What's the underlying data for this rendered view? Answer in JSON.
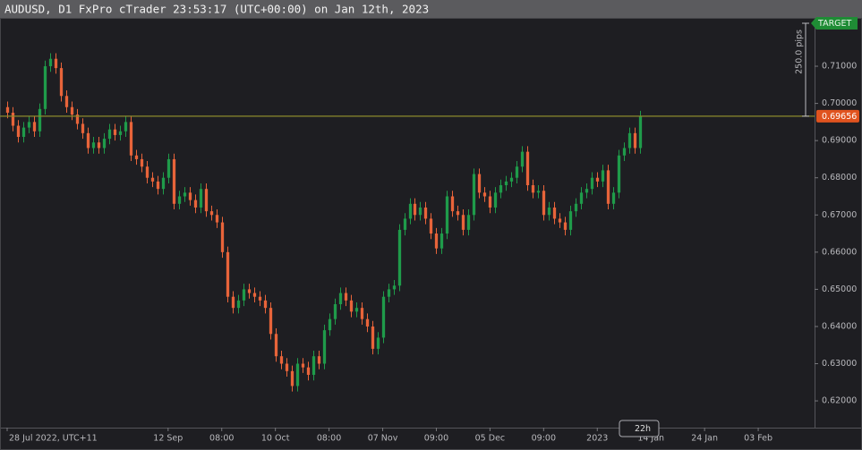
{
  "chart_data": {
    "type": "candlestick",
    "title": "AUDUSD, D1 FxPro cTrader 23:53:17 (UTC+00:00) on Jan 12th, 2023",
    "up_color": "#1f9b4a",
    "down_color": "#e8643a",
    "xlim": [
      -0.5,
      150.5
    ],
    "ylim": [
      0.6128,
      0.723
    ],
    "yticks": [
      {
        "value": 0.62,
        "label": "0.62000"
      },
      {
        "value": 0.63,
        "label": "0.63000"
      },
      {
        "value": 0.64,
        "label": "0.64000"
      },
      {
        "value": 0.65,
        "label": "0.65000"
      },
      {
        "value": 0.66,
        "label": "0.66000"
      },
      {
        "value": 0.67,
        "label": "0.67000"
      },
      {
        "value": 0.68,
        "label": "0.68000"
      },
      {
        "value": 0.69,
        "label": "0.69000"
      },
      {
        "value": 0.7,
        "label": "0.70000"
      },
      {
        "value": 0.71,
        "label": "0.71000"
      }
    ],
    "xticks": [
      {
        "value": 0,
        "label": "28 Jul 2022, UTC+11"
      },
      {
        "value": 30,
        "label": "12 Sep"
      },
      {
        "value": 40,
        "label": "08:00"
      },
      {
        "value": 50,
        "label": "10 Oct"
      },
      {
        "value": 60,
        "label": "08:00"
      },
      {
        "value": 70,
        "label": "07 Nov"
      },
      {
        "value": 80,
        "label": "09:00"
      },
      {
        "value": 90,
        "label": "05 Dec"
      },
      {
        "value": 100,
        "label": "09:00"
      },
      {
        "value": 110,
        "label": "2023"
      },
      {
        "value": 120,
        "label": "14 Jan"
      },
      {
        "value": 130,
        "label": "24 Jan"
      },
      {
        "value": 140,
        "label": "03 Feb"
      }
    ],
    "current_price": {
      "value": 0.69656,
      "label": "0.69656"
    },
    "target": {
      "value": 0.72156,
      "label": "TARGET"
    },
    "distance_label": "250.0 pips",
    "countdown": "22h",
    "ohlc": [
      [
        0.699,
        0.7005,
        0.696,
        0.6975
      ],
      [
        0.6975,
        0.699,
        0.6925,
        0.694
      ],
      [
        0.694,
        0.6955,
        0.6895,
        0.691
      ],
      [
        0.691,
        0.695,
        0.6895,
        0.6935
      ],
      [
        0.6935,
        0.6965,
        0.692,
        0.695
      ],
      [
        0.695,
        0.6965,
        0.691,
        0.6925
      ],
      [
        0.6925,
        0.7,
        0.691,
        0.6985
      ],
      [
        0.6985,
        0.7115,
        0.697,
        0.71
      ],
      [
        0.71,
        0.7135,
        0.7085,
        0.712
      ],
      [
        0.712,
        0.7135,
        0.708,
        0.7095
      ],
      [
        0.7095,
        0.711,
        0.7005,
        0.702
      ],
      [
        0.702,
        0.7035,
        0.6975,
        0.699
      ],
      [
        0.699,
        0.7005,
        0.6955,
        0.697
      ],
      [
        0.697,
        0.6985,
        0.693,
        0.6945
      ],
      [
        0.6945,
        0.696,
        0.6905,
        0.692
      ],
      [
        0.692,
        0.6935,
        0.6865,
        0.688
      ],
      [
        0.688,
        0.691,
        0.6865,
        0.6895
      ],
      [
        0.6895,
        0.691,
        0.6865,
        0.688
      ],
      [
        0.688,
        0.692,
        0.6865,
        0.6905
      ],
      [
        0.6905,
        0.6945,
        0.689,
        0.693
      ],
      [
        0.693,
        0.6945,
        0.69,
        0.6915
      ],
      [
        0.6915,
        0.694,
        0.69,
        0.6925
      ],
      [
        0.6925,
        0.6965,
        0.691,
        0.695
      ],
      [
        0.695,
        0.6965,
        0.6845,
        0.686
      ],
      [
        0.686,
        0.6875,
        0.6835,
        0.685
      ],
      [
        0.685,
        0.6865,
        0.6815,
        0.683
      ],
      [
        0.683,
        0.6845,
        0.6785,
        0.68
      ],
      [
        0.68,
        0.6815,
        0.6775,
        0.679
      ],
      [
        0.679,
        0.6805,
        0.6755,
        0.677
      ],
      [
        0.677,
        0.6815,
        0.6755,
        0.68
      ],
      [
        0.68,
        0.6865,
        0.6785,
        0.685
      ],
      [
        0.685,
        0.6865,
        0.6715,
        0.673
      ],
      [
        0.673,
        0.6765,
        0.6715,
        0.675
      ],
      [
        0.675,
        0.6775,
        0.6735,
        0.676
      ],
      [
        0.676,
        0.6775,
        0.6725,
        0.674
      ],
      [
        0.674,
        0.6755,
        0.6705,
        0.672
      ],
      [
        0.672,
        0.6785,
        0.6705,
        0.677
      ],
      [
        0.677,
        0.6785,
        0.6695,
        0.671
      ],
      [
        0.671,
        0.6725,
        0.6685,
        0.67
      ],
      [
        0.67,
        0.6715,
        0.6665,
        0.668
      ],
      [
        0.668,
        0.6695,
        0.6585,
        0.66
      ],
      [
        0.66,
        0.6615,
        0.6465,
        0.648
      ],
      [
        0.648,
        0.6495,
        0.6435,
        0.645
      ],
      [
        0.645,
        0.6485,
        0.6435,
        0.647
      ],
      [
        0.647,
        0.6515,
        0.6455,
        0.65
      ],
      [
        0.65,
        0.6515,
        0.6475,
        0.649
      ],
      [
        0.649,
        0.6505,
        0.6465,
        0.648
      ],
      [
        0.648,
        0.6495,
        0.6455,
        0.647
      ],
      [
        0.647,
        0.6485,
        0.6435,
        0.645
      ],
      [
        0.645,
        0.6465,
        0.6365,
        0.638
      ],
      [
        0.638,
        0.6395,
        0.6305,
        0.632
      ],
      [
        0.632,
        0.6335,
        0.6285,
        0.63
      ],
      [
        0.63,
        0.6315,
        0.6265,
        0.628
      ],
      [
        0.628,
        0.6295,
        0.6225,
        0.624
      ],
      [
        0.624,
        0.6315,
        0.6225,
        0.63
      ],
      [
        0.63,
        0.6315,
        0.6275,
        0.629
      ],
      [
        0.629,
        0.6305,
        0.6255,
        0.627
      ],
      [
        0.627,
        0.6335,
        0.6255,
        0.632
      ],
      [
        0.632,
        0.6335,
        0.6285,
        0.63
      ],
      [
        0.63,
        0.6405,
        0.6285,
        0.639
      ],
      [
        0.639,
        0.6435,
        0.6375,
        0.642
      ],
      [
        0.642,
        0.6475,
        0.6405,
        0.646
      ],
      [
        0.646,
        0.6505,
        0.6445,
        0.649
      ],
      [
        0.649,
        0.6505,
        0.6455,
        0.647
      ],
      [
        0.647,
        0.6485,
        0.6425,
        0.644
      ],
      [
        0.644,
        0.6465,
        0.6425,
        0.645
      ],
      [
        0.645,
        0.6465,
        0.6405,
        0.642
      ],
      [
        0.642,
        0.6435,
        0.6385,
        0.64
      ],
      [
        0.64,
        0.6415,
        0.6325,
        0.634
      ],
      [
        0.634,
        0.6385,
        0.6325,
        0.637
      ],
      [
        0.637,
        0.6495,
        0.6355,
        0.648
      ],
      [
        0.648,
        0.6515,
        0.6465,
        0.65
      ],
      [
        0.65,
        0.6525,
        0.6485,
        0.651
      ],
      [
        0.651,
        0.6675,
        0.6495,
        0.666
      ],
      [
        0.666,
        0.6705,
        0.6645,
        0.669
      ],
      [
        0.669,
        0.6745,
        0.6675,
        0.673
      ],
      [
        0.673,
        0.6745,
        0.6685,
        0.67
      ],
      [
        0.67,
        0.6735,
        0.6685,
        0.672
      ],
      [
        0.672,
        0.6735,
        0.6675,
        0.669
      ],
      [
        0.669,
        0.6705,
        0.6635,
        0.665
      ],
      [
        0.665,
        0.6665,
        0.6595,
        0.661
      ],
      [
        0.661,
        0.6665,
        0.6595,
        0.665
      ],
      [
        0.665,
        0.6765,
        0.6635,
        0.675
      ],
      [
        0.675,
        0.6765,
        0.6695,
        0.671
      ],
      [
        0.671,
        0.6725,
        0.6685,
        0.67
      ],
      [
        0.67,
        0.6715,
        0.6645,
        0.666
      ],
      [
        0.666,
        0.6715,
        0.6645,
        0.67
      ],
      [
        0.67,
        0.6825,
        0.6685,
        0.681
      ],
      [
        0.681,
        0.6825,
        0.6745,
        0.676
      ],
      [
        0.676,
        0.6775,
        0.6735,
        0.675
      ],
      [
        0.675,
        0.6765,
        0.6705,
        0.672
      ],
      [
        0.672,
        0.6775,
        0.6705,
        0.676
      ],
      [
        0.676,
        0.6795,
        0.6745,
        0.678
      ],
      [
        0.678,
        0.6805,
        0.6765,
        0.679
      ],
      [
        0.679,
        0.6815,
        0.6775,
        0.68
      ],
      [
        0.68,
        0.6845,
        0.6785,
        0.683
      ],
      [
        0.683,
        0.6885,
        0.6815,
        0.687
      ],
      [
        0.687,
        0.6885,
        0.6765,
        0.678
      ],
      [
        0.678,
        0.6795,
        0.6745,
        0.676
      ],
      [
        0.676,
        0.678,
        0.6745,
        0.6765
      ],
      [
        0.6765,
        0.678,
        0.6685,
        0.67
      ],
      [
        0.67,
        0.6735,
        0.6685,
        0.672
      ],
      [
        0.672,
        0.6735,
        0.6675,
        0.669
      ],
      [
        0.669,
        0.6705,
        0.6665,
        0.668
      ],
      [
        0.668,
        0.6695,
        0.6645,
        0.666
      ],
      [
        0.666,
        0.6725,
        0.6645,
        0.671
      ],
      [
        0.671,
        0.6745,
        0.6695,
        0.673
      ],
      [
        0.673,
        0.6775,
        0.6715,
        0.676
      ],
      [
        0.676,
        0.6785,
        0.6745,
        0.677
      ],
      [
        0.677,
        0.6815,
        0.6755,
        0.68
      ],
      [
        0.68,
        0.6815,
        0.6775,
        0.679
      ],
      [
        0.679,
        0.6835,
        0.6775,
        0.682
      ],
      [
        0.682,
        0.6835,
        0.6715,
        0.673
      ],
      [
        0.673,
        0.6775,
        0.6715,
        0.676
      ],
      [
        0.676,
        0.6875,
        0.6745,
        0.686
      ],
      [
        0.686,
        0.6895,
        0.6845,
        0.688
      ],
      [
        0.688,
        0.6935,
        0.6865,
        0.692
      ],
      [
        0.692,
        0.6935,
        0.6865,
        0.688
      ],
      [
        0.688,
        0.698,
        0.6865,
        0.69656
      ]
    ]
  }
}
